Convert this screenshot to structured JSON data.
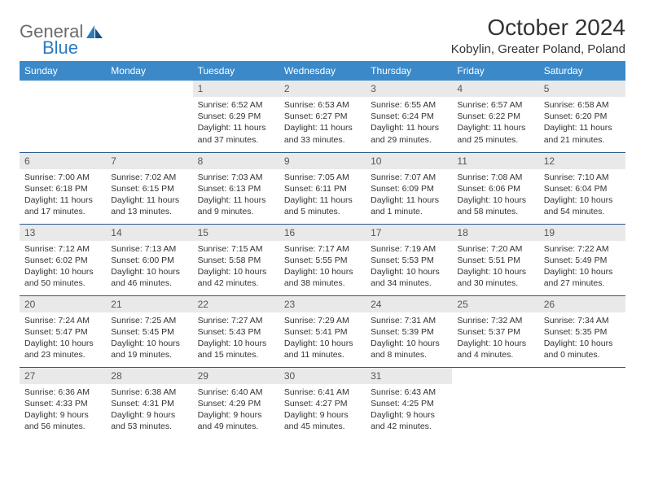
{
  "brand": {
    "part1": "General",
    "part2": "Blue"
  },
  "title": "October 2024",
  "location": "Kobylin, Greater Poland, Poland",
  "colors": {
    "header_bg": "#3b89c9",
    "header_text": "#ffffff",
    "daynum_bg": "#e9e9e9",
    "row_divider": "#2b5a8a",
    "logo_gray": "#6b6b6b",
    "logo_blue": "#2b7bbf"
  },
  "weekdays": [
    "Sunday",
    "Monday",
    "Tuesday",
    "Wednesday",
    "Thursday",
    "Friday",
    "Saturday"
  ],
  "weeks": [
    [
      {
        "n": "",
        "lines": []
      },
      {
        "n": "",
        "lines": []
      },
      {
        "n": "1",
        "lines": [
          "Sunrise: 6:52 AM",
          "Sunset: 6:29 PM",
          "Daylight: 11 hours and 37 minutes."
        ]
      },
      {
        "n": "2",
        "lines": [
          "Sunrise: 6:53 AM",
          "Sunset: 6:27 PM",
          "Daylight: 11 hours and 33 minutes."
        ]
      },
      {
        "n": "3",
        "lines": [
          "Sunrise: 6:55 AM",
          "Sunset: 6:24 PM",
          "Daylight: 11 hours and 29 minutes."
        ]
      },
      {
        "n": "4",
        "lines": [
          "Sunrise: 6:57 AM",
          "Sunset: 6:22 PM",
          "Daylight: 11 hours and 25 minutes."
        ]
      },
      {
        "n": "5",
        "lines": [
          "Sunrise: 6:58 AM",
          "Sunset: 6:20 PM",
          "Daylight: 11 hours and 21 minutes."
        ]
      }
    ],
    [
      {
        "n": "6",
        "lines": [
          "Sunrise: 7:00 AM",
          "Sunset: 6:18 PM",
          "Daylight: 11 hours and 17 minutes."
        ]
      },
      {
        "n": "7",
        "lines": [
          "Sunrise: 7:02 AM",
          "Sunset: 6:15 PM",
          "Daylight: 11 hours and 13 minutes."
        ]
      },
      {
        "n": "8",
        "lines": [
          "Sunrise: 7:03 AM",
          "Sunset: 6:13 PM",
          "Daylight: 11 hours and 9 minutes."
        ]
      },
      {
        "n": "9",
        "lines": [
          "Sunrise: 7:05 AM",
          "Sunset: 6:11 PM",
          "Daylight: 11 hours and 5 minutes."
        ]
      },
      {
        "n": "10",
        "lines": [
          "Sunrise: 7:07 AM",
          "Sunset: 6:09 PM",
          "Daylight: 11 hours and 1 minute."
        ]
      },
      {
        "n": "11",
        "lines": [
          "Sunrise: 7:08 AM",
          "Sunset: 6:06 PM",
          "Daylight: 10 hours and 58 minutes."
        ]
      },
      {
        "n": "12",
        "lines": [
          "Sunrise: 7:10 AM",
          "Sunset: 6:04 PM",
          "Daylight: 10 hours and 54 minutes."
        ]
      }
    ],
    [
      {
        "n": "13",
        "lines": [
          "Sunrise: 7:12 AM",
          "Sunset: 6:02 PM",
          "Daylight: 10 hours and 50 minutes."
        ]
      },
      {
        "n": "14",
        "lines": [
          "Sunrise: 7:13 AM",
          "Sunset: 6:00 PM",
          "Daylight: 10 hours and 46 minutes."
        ]
      },
      {
        "n": "15",
        "lines": [
          "Sunrise: 7:15 AM",
          "Sunset: 5:58 PM",
          "Daylight: 10 hours and 42 minutes."
        ]
      },
      {
        "n": "16",
        "lines": [
          "Sunrise: 7:17 AM",
          "Sunset: 5:55 PM",
          "Daylight: 10 hours and 38 minutes."
        ]
      },
      {
        "n": "17",
        "lines": [
          "Sunrise: 7:19 AM",
          "Sunset: 5:53 PM",
          "Daylight: 10 hours and 34 minutes."
        ]
      },
      {
        "n": "18",
        "lines": [
          "Sunrise: 7:20 AM",
          "Sunset: 5:51 PM",
          "Daylight: 10 hours and 30 minutes."
        ]
      },
      {
        "n": "19",
        "lines": [
          "Sunrise: 7:22 AM",
          "Sunset: 5:49 PM",
          "Daylight: 10 hours and 27 minutes."
        ]
      }
    ],
    [
      {
        "n": "20",
        "lines": [
          "Sunrise: 7:24 AM",
          "Sunset: 5:47 PM",
          "Daylight: 10 hours and 23 minutes."
        ]
      },
      {
        "n": "21",
        "lines": [
          "Sunrise: 7:25 AM",
          "Sunset: 5:45 PM",
          "Daylight: 10 hours and 19 minutes."
        ]
      },
      {
        "n": "22",
        "lines": [
          "Sunrise: 7:27 AM",
          "Sunset: 5:43 PM",
          "Daylight: 10 hours and 15 minutes."
        ]
      },
      {
        "n": "23",
        "lines": [
          "Sunrise: 7:29 AM",
          "Sunset: 5:41 PM",
          "Daylight: 10 hours and 11 minutes."
        ]
      },
      {
        "n": "24",
        "lines": [
          "Sunrise: 7:31 AM",
          "Sunset: 5:39 PM",
          "Daylight: 10 hours and 8 minutes."
        ]
      },
      {
        "n": "25",
        "lines": [
          "Sunrise: 7:32 AM",
          "Sunset: 5:37 PM",
          "Daylight: 10 hours and 4 minutes."
        ]
      },
      {
        "n": "26",
        "lines": [
          "Sunrise: 7:34 AM",
          "Sunset: 5:35 PM",
          "Daylight: 10 hours and 0 minutes."
        ]
      }
    ],
    [
      {
        "n": "27",
        "lines": [
          "Sunrise: 6:36 AM",
          "Sunset: 4:33 PM",
          "Daylight: 9 hours and 56 minutes."
        ]
      },
      {
        "n": "28",
        "lines": [
          "Sunrise: 6:38 AM",
          "Sunset: 4:31 PM",
          "Daylight: 9 hours and 53 minutes."
        ]
      },
      {
        "n": "29",
        "lines": [
          "Sunrise: 6:40 AM",
          "Sunset: 4:29 PM",
          "Daylight: 9 hours and 49 minutes."
        ]
      },
      {
        "n": "30",
        "lines": [
          "Sunrise: 6:41 AM",
          "Sunset: 4:27 PM",
          "Daylight: 9 hours and 45 minutes."
        ]
      },
      {
        "n": "31",
        "lines": [
          "Sunrise: 6:43 AM",
          "Sunset: 4:25 PM",
          "Daylight: 9 hours and 42 minutes."
        ]
      },
      {
        "n": "",
        "lines": []
      },
      {
        "n": "",
        "lines": []
      }
    ]
  ]
}
